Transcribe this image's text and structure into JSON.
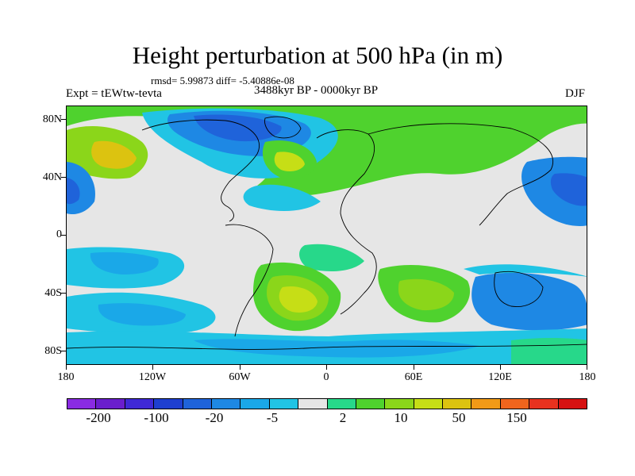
{
  "title": "Height perturbation at 500 hPa (in m)",
  "stats": "rmsd= 5.99873 diff= -5.40886e-08",
  "experiment": "Expt = tEWtw-tevta",
  "period": "3488kyr BP - 0000kyr BP",
  "season": "DJF",
  "y_axis_labels": [
    "80N",
    "40N",
    "0",
    "40S",
    "80S"
  ],
  "x_axis_labels": [
    "180",
    "120W",
    "60W",
    "0",
    "60E",
    "120E",
    "180"
  ],
  "colorbar": {
    "colors": [
      "#8a2be2",
      "#6a1ecd",
      "#3f29d6",
      "#1e3fd0",
      "#1f63da",
      "#1e88e4",
      "#1aa8e8",
      "#21c4e4",
      "#e6e6e6",
      "#27d88a",
      "#4fd22e",
      "#8bd61a",
      "#c6de16",
      "#dcc310",
      "#f19a17",
      "#f0651d",
      "#e8321f",
      "#d61212"
    ],
    "labels": [
      "-200",
      "-100",
      "-20",
      "-5",
      "2",
      "10",
      "50",
      "150"
    ]
  }
}
